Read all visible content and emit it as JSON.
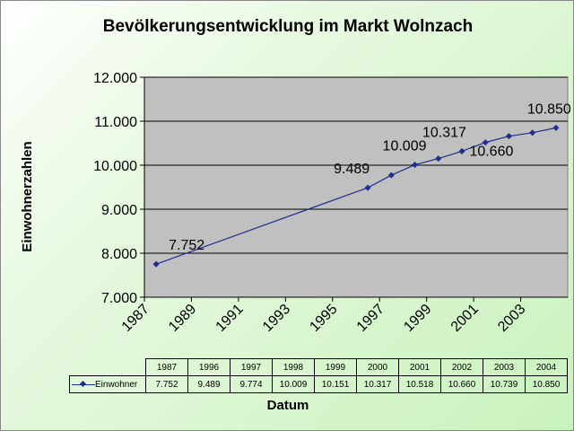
{
  "chart_data": {
    "type": "line",
    "title": "Bevölkerungsentwicklung im Markt Wolnzach",
    "ylabel": "Einwohnerzahlen",
    "xlabel": "Datum",
    "xlim": [
      1987,
      2005
    ],
    "ylim": [
      7000,
      12000
    ],
    "x_ticks": [
      "1987",
      "1989",
      "1991",
      "1993",
      "1995",
      "1997",
      "1999",
      "2001",
      "2003"
    ],
    "y_ticks": [
      "7.000",
      "8.000",
      "9.000",
      "10.000",
      "11.000",
      "12.000"
    ],
    "grid": true,
    "series": [
      {
        "name": "Einwohner",
        "color": "#1e2e8c",
        "x": [
          1987.5,
          1996.5,
          1997.5,
          1998.5,
          1999.5,
          2000.5,
          2001.5,
          2002.5,
          2003.5,
          2004.5
        ],
        "values": [
          7752,
          9489,
          9774,
          10009,
          10151,
          10317,
          10518,
          10660,
          10739,
          10850
        ],
        "data_labels": [
          {
            "index": 0,
            "text": "7.752"
          },
          {
            "index": 1,
            "text": "9.489"
          },
          {
            "index": 3,
            "text": "10.009"
          },
          {
            "index": 5,
            "text": "10.317"
          },
          {
            "index": 7,
            "text": "10.660"
          },
          {
            "index": 9,
            "text": "10.850"
          }
        ]
      }
    ],
    "table": {
      "years": [
        "1987",
        "1996",
        "1997",
        "1998",
        "1999",
        "2000",
        "2001",
        "2002",
        "2003",
        "2004"
      ],
      "values": [
        "7.752",
        "9.489",
        "9.774",
        "10.009",
        "10.151",
        "10.317",
        "10.518",
        "10.660",
        "10.739",
        "10.850"
      ]
    }
  },
  "colors": {
    "plot_bg": "#c0c0c0",
    "line": "#1e2e8c"
  }
}
